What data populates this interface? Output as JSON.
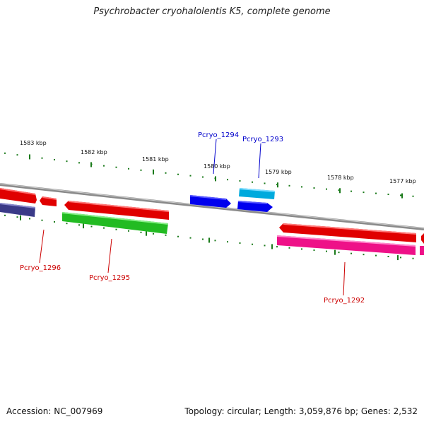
{
  "title": "Psychrobacter cryohalolentis K5, complete genome",
  "footer": {
    "accession": "Accession: NC_007969",
    "topology": "Topology: circular; Length: 3,059,876 bp; Genes: 2,532"
  },
  "scale_labels": [
    "1583 kbp",
    "1582 kbp",
    "1581 kbp",
    "1580 kbp",
    "1579 kbp",
    "1578 kbp",
    "1577 kbp"
  ],
  "gene_labels": [
    "Pcryo_1294",
    "Pcryo_1293",
    "Pcryo_1296",
    "Pcryo_1295",
    "Pcryo_1292"
  ],
  "colors": {
    "forward_label": "#0000cc",
    "reverse_label": "#cc0000",
    "tick": "#1a7a1a",
    "backbone": "#8a8a8a",
    "red_gene": "#e00000",
    "green_gene": "#22bb22",
    "blue_gene": "#0000ee",
    "cyan_gene": "#00aadd",
    "pink_gene": "#ee1188",
    "navy_gene": "#3a3a88"
  }
}
